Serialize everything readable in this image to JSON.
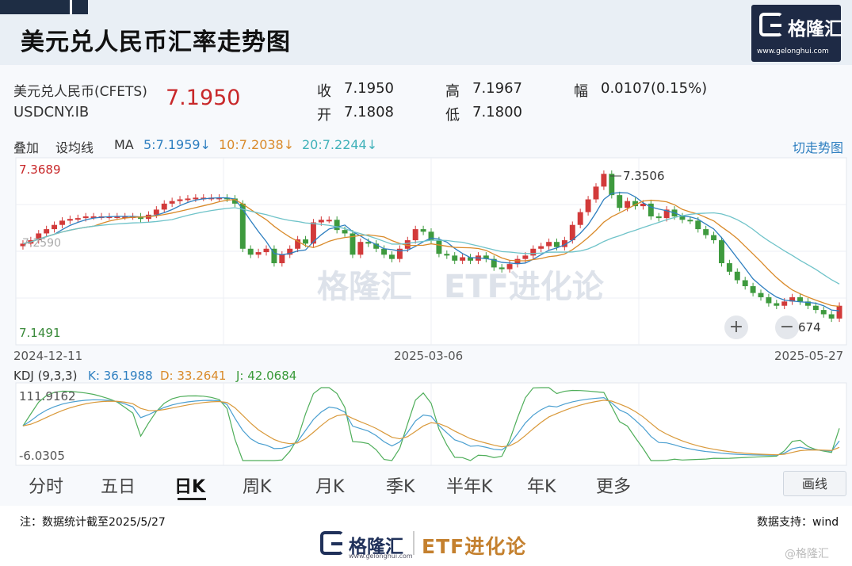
{
  "header": {
    "title": "美元兑人民币汇率走势图",
    "logo_name": "格隆汇",
    "logo_url": "www.gelonghui.com"
  },
  "quote": {
    "name": "美元兑人民币(CFETS)",
    "code": "USDCNY.IB",
    "price": "7.1950",
    "close_label": "收",
    "close": "7.1950",
    "open_label": "开",
    "open": "7.1808",
    "high_label": "高",
    "high": "7.1967",
    "low_label": "低",
    "low": "7.1800",
    "range_label": "幅",
    "range": "0.0107(0.15%)"
  },
  "toolbar": {
    "overlay": "叠加",
    "set_ma": "设均线",
    "ma_label": "MA",
    "ma5": "5:7.1959↓",
    "ma10": "10:7.2038↓",
    "ma20": "20:7.2244↓",
    "switch_trend": "切走势图"
  },
  "kline": {
    "y_max_label": "7.3689",
    "y_min_label": "7.1491",
    "peak_label": "7.3506",
    "left_mid_label": "7.2590",
    "zoom_in": "+",
    "zoom_out": "−",
    "bottom_right_label": "674",
    "dates": [
      "2024-12-11",
      "2025-03-06",
      "2025-05-27"
    ],
    "watermark_brand": "格隆汇",
    "watermark_etf": "ETF进化论",
    "colors": {
      "up": "#d23a3a",
      "down": "#3e9a3e",
      "ma5": "#2e7fc0",
      "ma10": "#d98a2a",
      "ma20": "#6fc3c9"
    }
  },
  "kdj": {
    "title": "KDJ (9,3,3)",
    "k": "K: 36.1988",
    "d": "D: 33.2641",
    "j": "J: 42.0684",
    "max_label": "111.9162",
    "min_label": "-6.0305"
  },
  "timeframes": [
    "分时",
    "五日",
    "日K",
    "周K",
    "月K",
    "季K",
    "半年K",
    "年K",
    "更多"
  ],
  "active_timeframe": "日K",
  "draw_button": "画线",
  "footer": {
    "note": "注：数据统计截至2025/5/27",
    "source": "数据支持：wind",
    "brand": "格隆汇",
    "url": "www.gelonghui.com",
    "etf": "ETF进化论",
    "wm": "@格隆汇"
  },
  "chart_data": {
    "type": "candlestick",
    "y_axis_labels": [
      "7.3689",
      "7.1491"
    ],
    "x_labels": [
      "2024-12-11",
      "2025-03-06",
      "2025-05-27"
    ],
    "annotations": [
      "7.3506",
      "674"
    ],
    "ma_lines": [
      "MA5",
      "MA10",
      "MA20"
    ],
    "close": [
      7.268,
      7.272,
      7.28,
      7.285,
      7.29,
      7.295,
      7.297,
      7.298,
      7.3,
      7.3,
      7.3,
      7.3,
      7.3,
      7.3,
      7.3,
      7.297,
      7.302,
      7.308,
      7.315,
      7.318,
      7.32,
      7.321,
      7.322,
      7.322,
      7.322,
      7.322,
      7.321,
      7.315,
      7.262,
      7.255,
      7.258,
      7.262,
      7.245,
      7.255,
      7.262,
      7.273,
      7.268,
      7.293,
      7.296,
      7.296,
      7.284,
      7.28,
      7.255,
      7.27,
      7.268,
      7.262,
      7.255,
      7.25,
      7.262,
      7.272,
      7.285,
      7.282,
      7.272,
      7.256,
      7.254,
      7.248,
      7.252,
      7.248,
      7.254,
      7.25,
      7.24,
      7.238,
      7.244,
      7.25,
      7.254,
      7.262,
      7.265,
      7.27,
      7.264,
      7.272,
      7.29,
      7.305,
      7.32,
      7.335,
      7.35,
      7.325,
      7.31,
      7.318,
      7.312,
      7.315,
      7.3,
      7.298,
      7.308,
      7.3,
      7.296,
      7.295,
      7.285,
      7.278,
      7.272,
      7.245,
      7.235,
      7.225,
      7.218,
      7.21,
      7.205,
      7.198,
      7.195,
      7.2,
      7.205,
      7.2,
      7.195,
      7.19,
      7.185,
      7.18,
      7.195
    ],
    "kdj_range": [
      -6.0305,
      111.9162
    ]
  }
}
